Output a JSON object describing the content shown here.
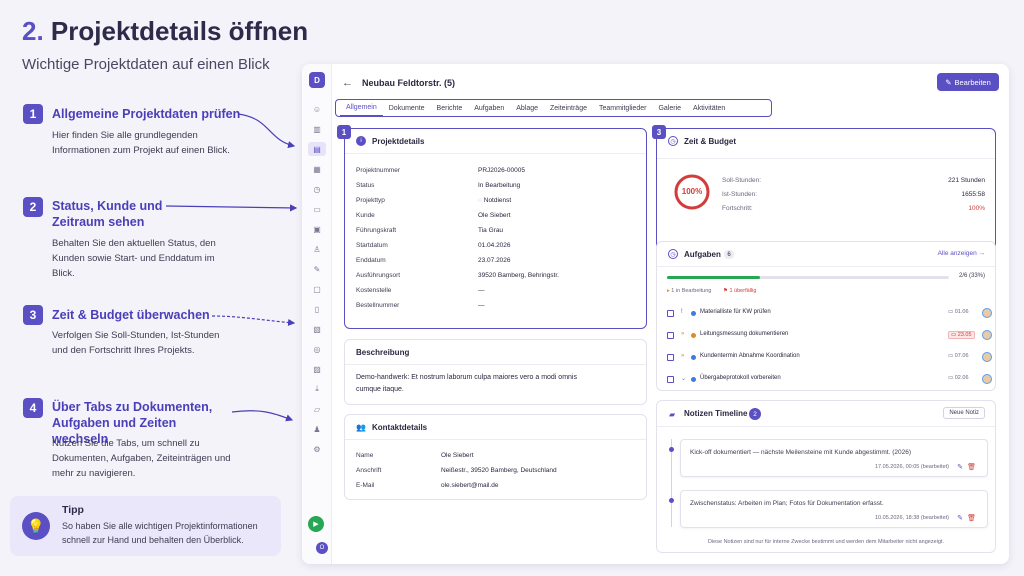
{
  "header": {
    "title_num": "2.",
    "title_text": "Projektdetails öffnen",
    "subtitle": "Wichtige Projektdaten auf einen Blick"
  },
  "steps": [
    {
      "num": "1",
      "title": "Allgemeine Projektdaten prüfen",
      "text": "Hier finden Sie alle grundlegenden Informationen zum Projekt auf einen Blick."
    },
    {
      "num": "2",
      "title": "Status, Kunde und Zeitraum sehen",
      "text": "Behalten Sie den aktuellen Status, den Kunden sowie Start- und Enddatum im Blick."
    },
    {
      "num": "3",
      "title": "Zeit & Budget überwachen",
      "text": "Verfolgen Sie Soll-Stunden, Ist-Stunden und den Fortschritt Ihres Projekts."
    },
    {
      "num": "4",
      "title": "Über Tabs zu Dokumenten, Aufgaben und Zeiten wechseln",
      "text": "Nutzen Sie die Tabs, um schnell zu Dokumenten, Aufgaben, Zeiteinträgen und mehr zu navigieren."
    }
  ],
  "tip": {
    "title": "Tipp",
    "text": "So haben Sie alle wichtigen Projektinformationen schnell zur Hand und behalten den Überblick.",
    "icon": "lightbulb-icon"
  },
  "app": {
    "logo_letter": "D",
    "user_initial": "O",
    "project_title": "Neubau Feldtorstr. (5)",
    "edit_label": "Bearbeiten",
    "tabs": [
      "Allgemein",
      "Dokumente",
      "Berichte",
      "Aufgaben",
      "Ablage",
      "Zeiteinträge",
      "Teammitglieder",
      "Galerie",
      "Aktivitäten"
    ],
    "project_details": {
      "badge": "1",
      "heading": "Projektdetails",
      "rows": [
        {
          "label": "Projektnummer",
          "value": "PRJ2026-00005"
        },
        {
          "label": "Status",
          "value": "In Bearbeitung"
        },
        {
          "label": "Projekttyp",
          "value": "Notdienst"
        },
        {
          "label": "Kunde",
          "value": "Ole Siebert"
        },
        {
          "label": "Führungskraft",
          "value": "Tia Grau"
        },
        {
          "label": "Startdatum",
          "value": "01.04.2026"
        },
        {
          "label": "Enddatum",
          "value": "23.07.2026"
        },
        {
          "label": "Ausführungsort",
          "value": "39520 Bamberg, Behringstr."
        },
        {
          "label": "Kostenstelle",
          "value": "—"
        },
        {
          "label": "Bestellnummer",
          "value": "—"
        }
      ]
    },
    "description": {
      "heading": "Beschreibung",
      "line1": "Demo-handwerk: Et nostrum laborum culpa maiores vero a modi omnis",
      "line2": "cumque itaque."
    },
    "contact": {
      "heading": "Kontaktdetails",
      "rows": [
        {
          "label": "Name",
          "value": "Ole Siebert"
        },
        {
          "label": "Anschrift",
          "value": "Neißestr., 39520 Bamberg, Deutschland"
        },
        {
          "label": "E-Mail",
          "value": "ole.siebert@mail.de"
        }
      ]
    },
    "time_budget": {
      "badge": "3",
      "heading": "Zeit & Budget",
      "ring_label": "100%",
      "progress": 1.0,
      "rows": [
        {
          "label": "Soll-Stunden:",
          "value": "221 Stunden"
        },
        {
          "label": "Ist-Stunden:",
          "value": "1655:58"
        },
        {
          "label": "Fortschritt:",
          "value": "100%"
        }
      ]
    },
    "tasks": {
      "heading": "Aufgaben",
      "count": "6",
      "show_all": "Alle anzeigen",
      "progress_label": "2/6 (33%)",
      "progress": 0.33,
      "legend_inprogress": "1 in Bearbeitung",
      "legend_overdue": "1 überfällig",
      "items": [
        {
          "name": "Materialliste für KW prüfen",
          "date": "01.06",
          "prio": "!",
          "prio_color": "#5b4fc4",
          "dot": "#3b7de0",
          "overdue": false
        },
        {
          "name": "Leitungsmessung dokumentieren",
          "date": "23.05",
          "prio": "»",
          "prio_color": "#e08a2a",
          "dot": "#e08a2a",
          "overdue": true
        },
        {
          "name": "Kundentermin Abnahme Koordination",
          "date": "07.06",
          "prio": "»",
          "prio_color": "#e08a2a",
          "dot": "#3b7de0",
          "overdue": false
        },
        {
          "name": "Übergabeprotokoll vorbereiten",
          "date": "02.06",
          "prio": "⌄",
          "prio_color": "#3b7de0",
          "dot": "#3b7de0",
          "overdue": false
        }
      ]
    },
    "notes": {
      "heading": "Notizen Timeline",
      "count": "2",
      "new_label": "Neue Notiz",
      "items": [
        {
          "text": "Kick-off dokumentiert — nächste Meilensteine mit Kunde abgestimmt. (2026)",
          "meta": "17.05.2026, 00:05 (bearbeitet)"
        },
        {
          "text": "Zwischenstatus: Arbeiten im Plan; Fotos für Dokumentation erfasst.",
          "meta": "10.05.2026, 18:38 (bearbeitet)"
        }
      ],
      "footer": "Diese Notizen sind nur für interne Zwecke bestimmt und werden dem Mitarbeiter nicht angezeigt."
    }
  },
  "colors": {
    "accent": "#5b4fc4",
    "success": "#27a653",
    "danger": "#d43b3b"
  }
}
